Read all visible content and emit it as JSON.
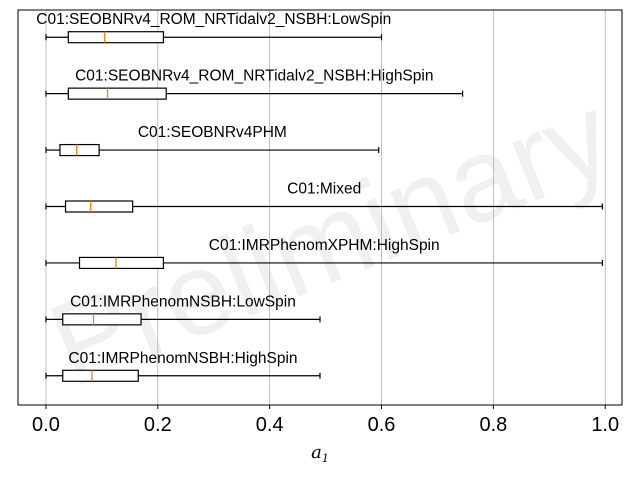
{
  "chart_data": {
    "type": "boxplot",
    "orientation": "horizontal",
    "watermark": "Preliminary",
    "xlabel": "a",
    "xlabel_subscript": "1",
    "xlim": [
      -0.05,
      1.03
    ],
    "xticks": [
      0.0,
      0.2,
      0.4,
      0.6,
      0.8,
      1.0
    ],
    "xtick_labels": [
      "0.0",
      "0.2",
      "0.4",
      "0.6",
      "0.8",
      "1.0"
    ],
    "grid": "vertical",
    "colors": {
      "box": "#000000",
      "median": "#ff7f0e",
      "grid": "#b0b0b0"
    },
    "series": [
      {
        "label": "C01:SEOBNRv4_ROM_NRTidalv2_NSBH:LowSpin",
        "whislo": 0.0,
        "q1": 0.04,
        "median": 0.105,
        "q3": 0.21,
        "whishi": 0.6
      },
      {
        "label": "C01:SEOBNRv4_ROM_NRTidalv2_NSBH:HighSpin",
        "whislo": 0.0,
        "q1": 0.04,
        "median": 0.11,
        "q3": 0.215,
        "whishi": 0.745
      },
      {
        "label": "C01:SEOBNRv4PHM",
        "whislo": 0.0,
        "q1": 0.025,
        "median": 0.055,
        "q3": 0.095,
        "whishi": 0.595
      },
      {
        "label": "C01:Mixed",
        "whislo": 0.0,
        "q1": 0.035,
        "median": 0.08,
        "q3": 0.155,
        "whishi": 0.995
      },
      {
        "label": "C01:IMRPhenomXPHM:HighSpin",
        "whislo": 0.0,
        "q1": 0.06,
        "median": 0.125,
        "q3": 0.21,
        "whishi": 0.995
      },
      {
        "label": "C01:IMRPhenomNSBH:LowSpin",
        "whislo": 0.0,
        "q1": 0.03,
        "median": 0.085,
        "q3": 0.17,
        "whishi": 0.49
      },
      {
        "label": "C01:IMRPhenomNSBH:HighSpin",
        "whislo": 0.0,
        "q1": 0.03,
        "median": 0.082,
        "q3": 0.165,
        "whishi": 0.49
      }
    ]
  }
}
